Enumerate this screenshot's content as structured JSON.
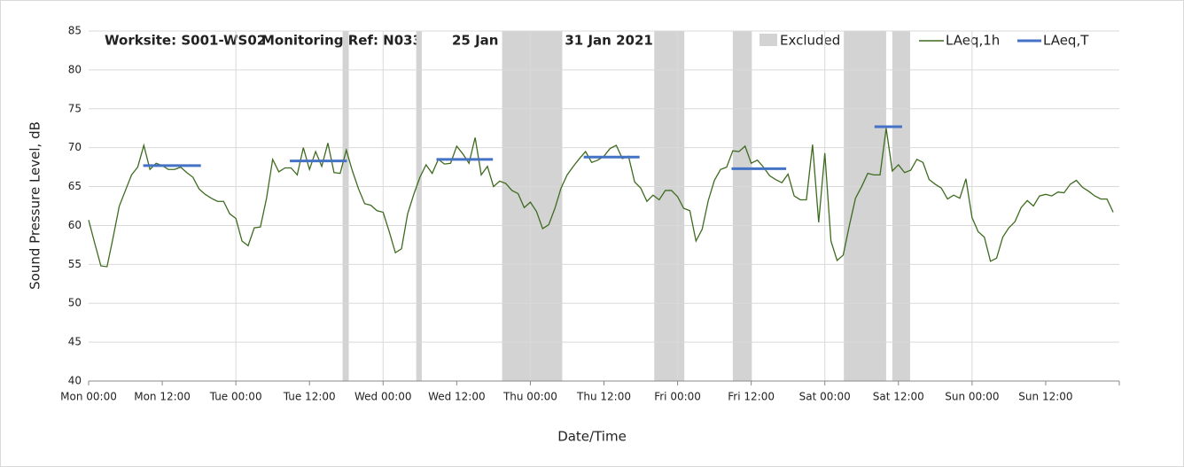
{
  "chart_data": {
    "type": "line",
    "title": [
      "Worksite: S001-WS02",
      "Monitoring Ref: N033",
      "25 Jan 2021 to 31 Jan 2021"
    ],
    "x_label": "Date/Time",
    "y_label": "Sound Pressure Level, dB",
    "xlim": [
      0,
      168
    ],
    "ylim": [
      40,
      85
    ],
    "yticks": [
      40,
      45,
      50,
      55,
      60,
      65,
      70,
      75,
      80,
      85
    ],
    "xticks": [
      {
        "value": 0,
        "label": "Mon 00:00"
      },
      {
        "value": 12,
        "label": "Mon 12:00"
      },
      {
        "value": 24,
        "label": "Tue 00:00"
      },
      {
        "value": 36,
        "label": "Tue 12:00"
      },
      {
        "value": 48,
        "label": "Wed 00:00"
      },
      {
        "value": 60,
        "label": "Wed 12:00"
      },
      {
        "value": 72,
        "label": "Thu 00:00"
      },
      {
        "value": 84,
        "label": "Thu 12:00"
      },
      {
        "value": 96,
        "label": "Fri 00:00"
      },
      {
        "value": 108,
        "label": "Fri 12:00"
      },
      {
        "value": 120,
        "label": "Sat 00:00"
      },
      {
        "value": 132,
        "label": "Sat 12:00"
      },
      {
        "value": 144,
        "label": "Sun 00:00"
      },
      {
        "value": 156,
        "label": "Sun 12:00"
      }
    ],
    "grid": true,
    "excluded": {
      "name": "Excluded data",
      "color": "#d3d3d3",
      "ranges": [
        [
          41.4,
          42.4
        ],
        [
          53.4,
          54.3
        ],
        [
          67.4,
          77.2
        ],
        [
          92.2,
          97.1
        ],
        [
          105,
          108.1
        ],
        [
          123.1,
          130
        ],
        [
          131,
          133.9
        ]
      ]
    },
    "series": [
      {
        "name": "LAeq,1h",
        "color": "#3e6b1f",
        "x": [
          0,
          1,
          2,
          3,
          4,
          5,
          6,
          7,
          8,
          9,
          10,
          11,
          12,
          13,
          14,
          15,
          16,
          17,
          18,
          19,
          20,
          21,
          22,
          23,
          24,
          25,
          26,
          27,
          28,
          29,
          30,
          31,
          32,
          33,
          34,
          35,
          36,
          37,
          38,
          39,
          40,
          41,
          42,
          43,
          44,
          45,
          46,
          47,
          48,
          49,
          50,
          51,
          52,
          53,
          54,
          55,
          56,
          57,
          58,
          59,
          60,
          61,
          62,
          63,
          64,
          65,
          66,
          67,
          68,
          69,
          70,
          71,
          72,
          73,
          74,
          75,
          76,
          77,
          78,
          79,
          80,
          81,
          82,
          83,
          84,
          85,
          86,
          87,
          88,
          89,
          90,
          91,
          92,
          93,
          94,
          95,
          96,
          97,
          98,
          99,
          100,
          101,
          102,
          103,
          104,
          105,
          106,
          107,
          108,
          109,
          110,
          111,
          112,
          113,
          114,
          115,
          116,
          117,
          118,
          119,
          120,
          121,
          122,
          123,
          124,
          125,
          126,
          127,
          128,
          129,
          130,
          131,
          132,
          133,
          134,
          135,
          136,
          137,
          138,
          139,
          140,
          141,
          142,
          143,
          144,
          145,
          146,
          147,
          148,
          149,
          150,
          151,
          152,
          153,
          154,
          155,
          156,
          157,
          158,
          159,
          160,
          161,
          162,
          163,
          164,
          165,
          166,
          167
        ],
        "values": [
          60.7,
          57.7,
          54.8,
          54.7,
          58.5,
          62.5,
          64.5,
          66.5,
          67.5,
          70.3,
          67.2,
          68,
          67.7,
          67.2,
          67.2,
          67.5,
          66.8,
          66.2,
          64.7,
          64,
          63.5,
          63.1,
          63.1,
          61.5,
          60.9,
          58,
          57.4,
          59.7,
          59.8,
          63.5,
          68.5,
          66.9,
          67.4,
          67.4,
          66.5,
          70,
          67.2,
          69.5,
          67.6,
          70.6,
          66.8,
          66.7,
          69.7,
          67,
          64.7,
          62.8,
          62.6,
          61.9,
          61.7,
          59.2,
          56.5,
          57,
          61.5,
          64,
          66.2,
          67.8,
          66.7,
          68.5,
          67.9,
          68,
          70.2,
          69.2,
          68,
          71.3,
          66.5,
          67.6,
          65,
          65.7,
          65.4,
          64.5,
          64.1,
          62.3,
          63,
          61.8,
          59.6,
          60.1,
          62.2,
          64.8,
          66.5,
          67.6,
          68.6,
          69.5,
          68.1,
          68.4,
          68.9,
          69.9,
          70.3,
          68.6,
          68.9,
          65.6,
          64.8,
          63.1,
          63.9,
          63.3,
          64.5,
          64.5,
          63.7,
          62.2,
          61.9,
          58,
          59.5,
          63.2,
          65.8,
          67.2,
          67.5,
          69.6,
          69.5,
          70.2,
          68,
          68.4,
          67.5,
          66.4,
          65.9,
          65.5,
          66.6,
          63.8,
          63.3,
          63.3,
          70.4,
          60.4,
          69.3,
          58,
          55.5,
          56.2,
          60,
          63.5,
          65,
          66.7,
          66.5,
          66.5,
          72.5,
          67,
          67.8,
          66.8,
          67.1,
          68.5,
          68.1,
          65.9,
          65.3,
          64.8,
          63.4,
          63.9,
          63.5,
          66,
          61,
          59.2,
          58.5,
          55.4,
          55.8,
          58.5,
          59.7,
          60.5,
          62.3,
          63.2,
          62.5,
          63.8,
          64,
          63.8,
          64.3,
          64.2,
          65.3,
          65.8,
          64.9,
          64.4,
          63.8,
          63.4,
          63.4,
          61.7
        ]
      },
      {
        "name": "LAeq,T",
        "color": "#4472c4",
        "segments": [
          {
            "x": [
              8.9,
              18.3
            ],
            "value": 67.7
          },
          {
            "x": [
              32.8,
              42.1
            ],
            "value": 68.3
          },
          {
            "x": [
              56.7,
              65.9
            ],
            "value": 68.5
          },
          {
            "x": [
              80.7,
              89.8
            ],
            "value": 68.8
          },
          {
            "x": [
              104.8,
              113.7
            ],
            "value": 67.3
          },
          {
            "x": [
              128.1,
              132.6
            ],
            "value": 72.7
          }
        ]
      }
    ]
  }
}
